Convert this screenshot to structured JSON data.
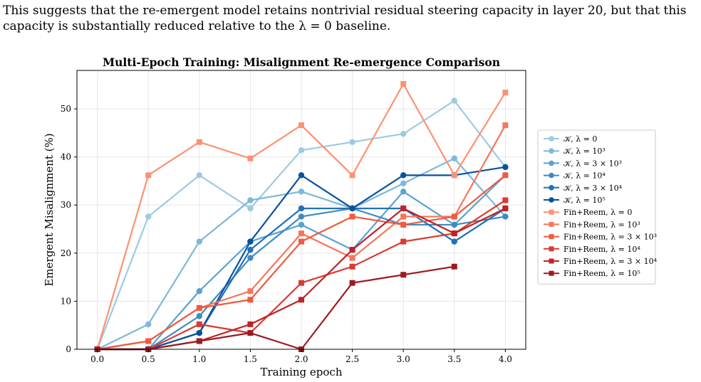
{
  "intro_text": "This suggests that the re-emergent model retains nontrivial residual steering capacity in layer 20, but that this capacity is substantially reduced relative to the λ = 0 baseline.",
  "chart_data": {
    "type": "line",
    "title": "Multi-Epoch Training: Misalignment Re-emergence Comparison",
    "xlabel": "Training epoch",
    "ylabel": "Emergent Misalignment (%)",
    "xlim": [
      -0.2,
      4.2
    ],
    "ylim": [
      0,
      58
    ],
    "xticks": [
      "0.0",
      "0.5",
      "1.0",
      "1.5",
      "2.0",
      "2.5",
      "3.0",
      "3.5",
      "4.0"
    ],
    "yticks": [
      "0",
      "10",
      "20",
      "30",
      "40",
      "50"
    ],
    "grid": true,
    "legend_position": "right-outside",
    "x": [
      0,
      0.5,
      1.0,
      1.5,
      2.0,
      2.5,
      3.0,
      3.5,
      4.0
    ],
    "series": [
      {
        "name": "𝒦, λ = 0",
        "marker": "circle",
        "color": "#9ecae1",
        "values": [
          0,
          27.6,
          36.2,
          29.3,
          41.4,
          43.1,
          44.8,
          51.7,
          37.9
        ]
      },
      {
        "name": "𝒦, λ = 10³",
        "marker": "circle",
        "color": "#7db8da",
        "values": [
          0,
          5.2,
          22.4,
          31.0,
          32.8,
          29.3,
          34.5,
          39.7,
          27.6
        ]
      },
      {
        "name": "𝒦, λ = 3 × 10³",
        "marker": "circle",
        "color": "#5ba3cf",
        "values": [
          0,
          0,
          12.1,
          22.4,
          25.9,
          20.7,
          32.8,
          25.9,
          36.2
        ]
      },
      {
        "name": "𝒦, λ = 10⁴",
        "marker": "circle",
        "color": "#3d8bc4",
        "values": [
          0,
          0,
          6.9,
          19.0,
          27.6,
          29.3,
          25.9,
          25.9,
          27.6
        ]
      },
      {
        "name": "𝒦, λ = 3 × 10⁴",
        "marker": "circle",
        "color": "#2171b5",
        "values": [
          0,
          0,
          3.4,
          20.7,
          29.3,
          29.3,
          29.3,
          22.4,
          29.3
        ]
      },
      {
        "name": "𝒦, λ = 10⁵",
        "marker": "circle",
        "color": "#08519c",
        "values": [
          0,
          0,
          3.4,
          22.4,
          36.2,
          29.3,
          36.2,
          36.2,
          37.9
        ]
      },
      {
        "name": "Fin+Reem, λ = 0",
        "marker": "square",
        "color": "#fc9272",
        "values": [
          0,
          36.2,
          43.1,
          39.7,
          46.6,
          36.2,
          55.2,
          36.2,
          53.4
        ]
      },
      {
        "name": "Fin+Reem, λ = 10³",
        "marker": "square",
        "color": "#f6765a",
        "values": [
          0,
          1.7,
          8.6,
          12.1,
          24.1,
          19.0,
          27.6,
          27.6,
          46.6
        ]
      },
      {
        "name": "Fin+Reem, λ = 3 × 10³",
        "marker": "square",
        "color": "#ef5a41",
        "values": [
          0,
          1.7,
          8.6,
          10.3,
          22.4,
          27.6,
          25.9,
          27.6,
          36.2
        ]
      },
      {
        "name": "Fin+Reem, λ = 10⁴",
        "marker": "square",
        "color": "#d93b30",
        "values": [
          0,
          0,
          5.2,
          3.4,
          13.8,
          17.2,
          22.4,
          24.1,
          31.0
        ]
      },
      {
        "name": "Fin+Reem, λ = 3 × 10⁴",
        "marker": "square",
        "color": "#bf2328",
        "values": [
          0,
          0,
          1.7,
          5.2,
          10.3,
          20.7,
          29.3,
          24.1,
          29.3
        ]
      },
      {
        "name": "Fin+Reem, λ = 10⁵",
        "marker": "square",
        "color": "#9e1a20",
        "values": [
          0,
          0,
          1.7,
          3.4,
          0,
          13.8,
          15.5,
          17.2,
          null
        ]
      }
    ]
  }
}
